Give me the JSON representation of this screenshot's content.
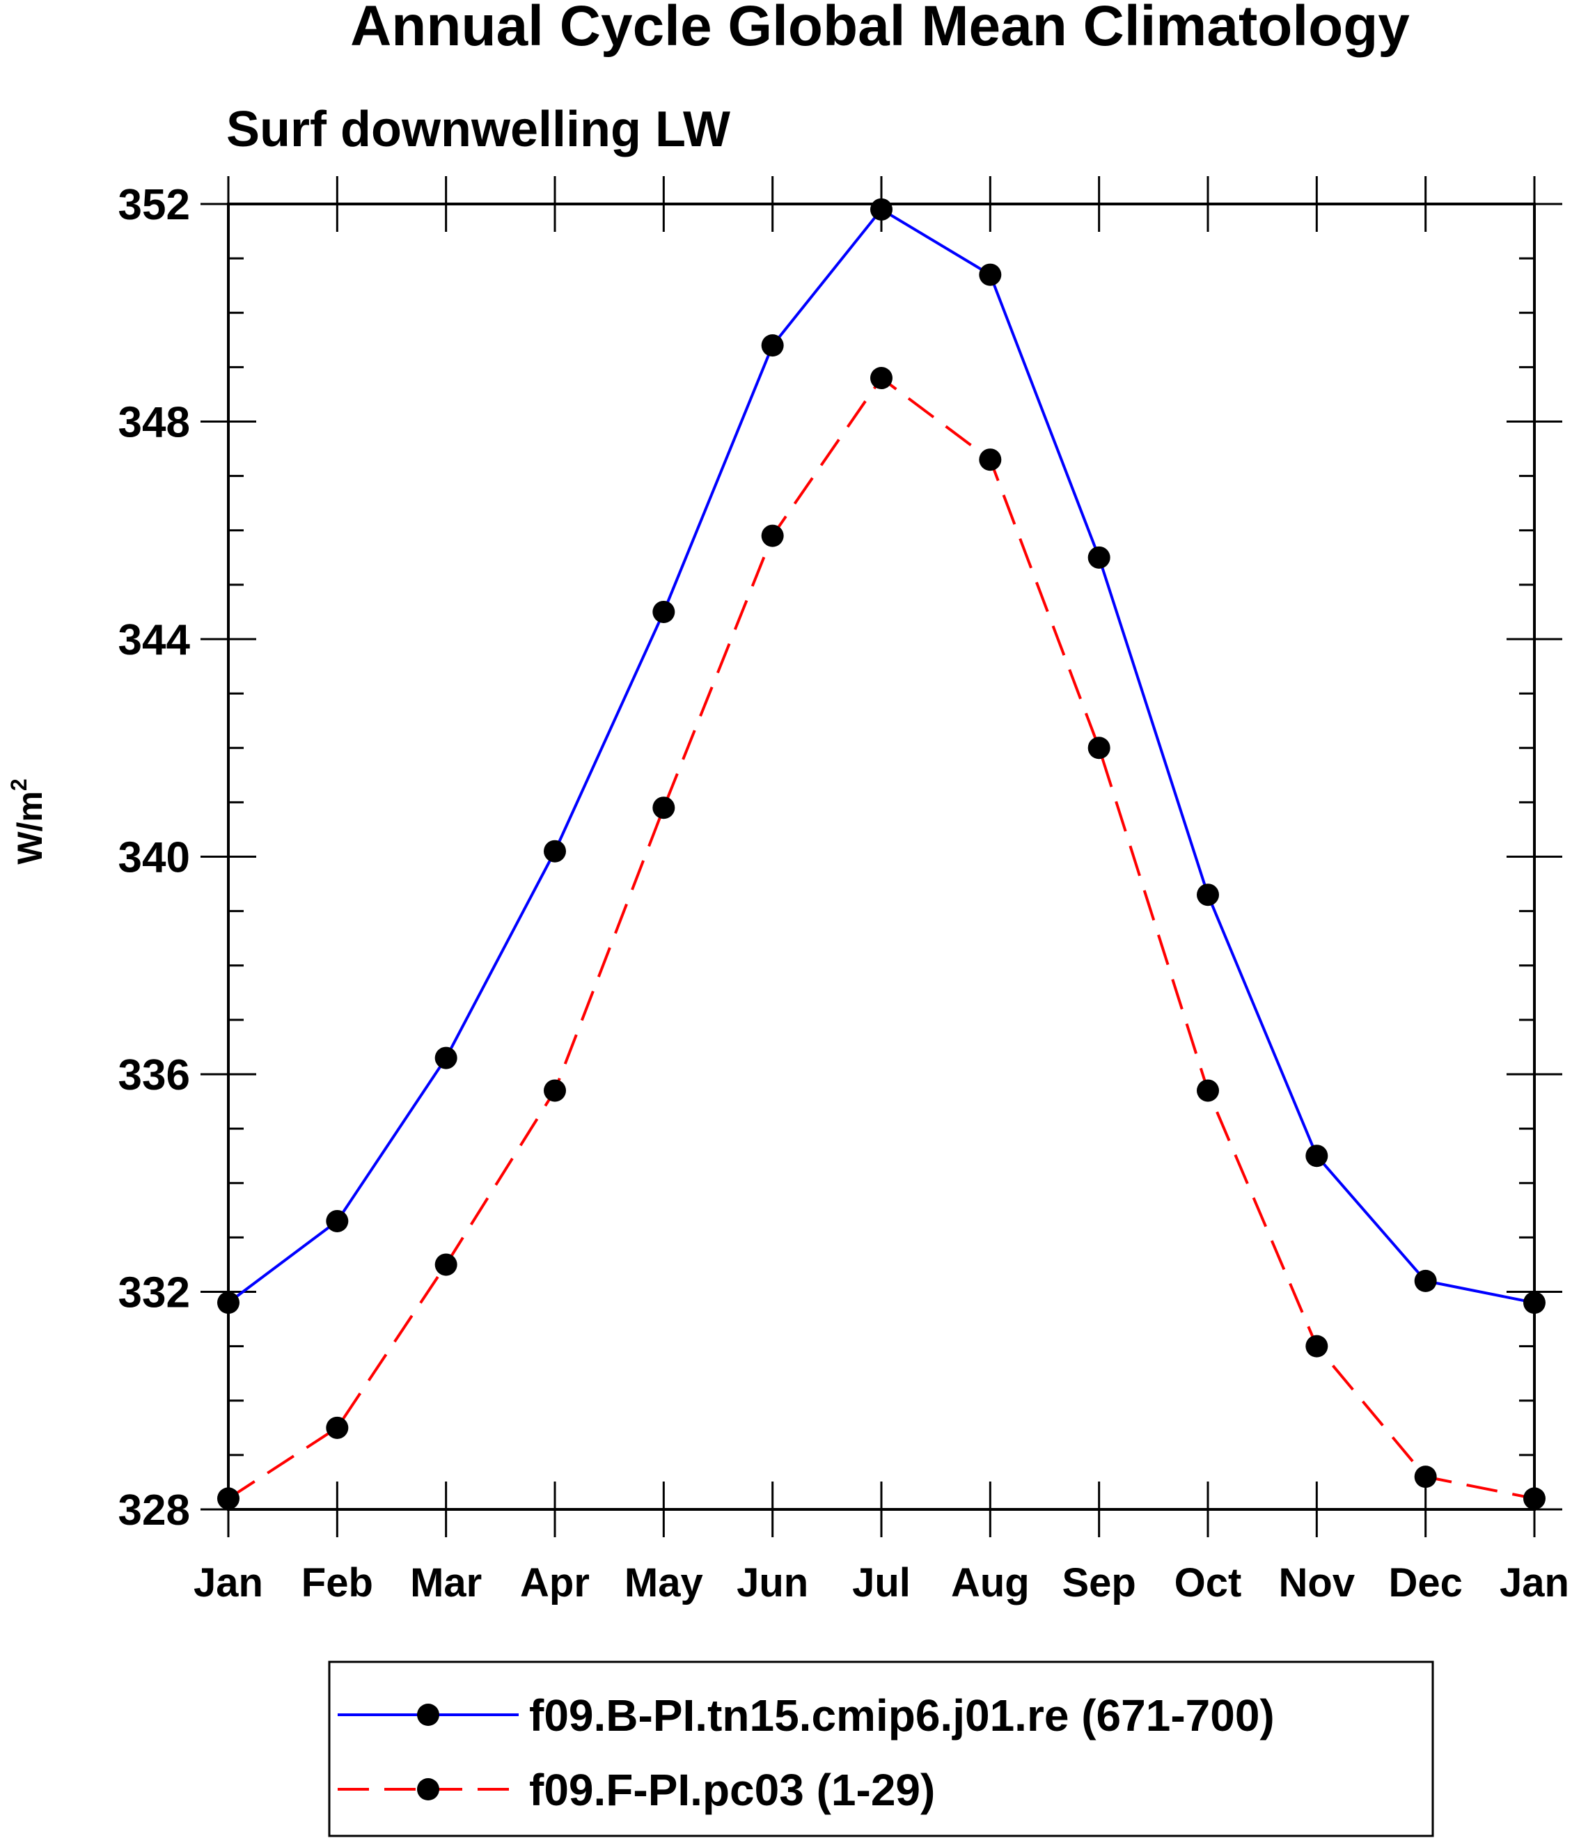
{
  "chart_data": {
    "type": "line",
    "title": "Annual Cycle Global Mean Climatology",
    "subtitle": "Surf downwelling LW",
    "ylabel_base": "W/m",
    "ylabel_sup": "2",
    "xlabel": "",
    "categories": [
      "Jan",
      "Feb",
      "Mar",
      "Apr",
      "May",
      "Jun",
      "Jul",
      "Aug",
      "Sep",
      "Oct",
      "Nov",
      "Dec",
      "Jan"
    ],
    "ylim": [
      328,
      352
    ],
    "yticks": [
      328,
      332,
      336,
      340,
      344,
      348,
      352
    ],
    "yminor_step": 1,
    "grid": false,
    "legend_position": "bottom",
    "series": [
      {
        "name": "f09.B-PI.tn15.cmip6.j01.re (671-700)",
        "color": "#0000ff",
        "dash": "solid",
        "marker": "filled-circle",
        "values": [
          331.8,
          333.3,
          336.3,
          340.1,
          344.5,
          349.4,
          351.9,
          350.7,
          345.5,
          339.3,
          334.5,
          332.2,
          331.8
        ]
      },
      {
        "name": "f09.F-PI.pc03 (1-29)",
        "color": "#ff0000",
        "dash": "dashed",
        "marker": "filled-circle",
        "values": [
          328.2,
          329.5,
          332.5,
          335.7,
          340.9,
          345.9,
          348.8,
          347.3,
          342.0,
          335.7,
          331.0,
          328.6,
          328.2
        ]
      }
    ]
  }
}
